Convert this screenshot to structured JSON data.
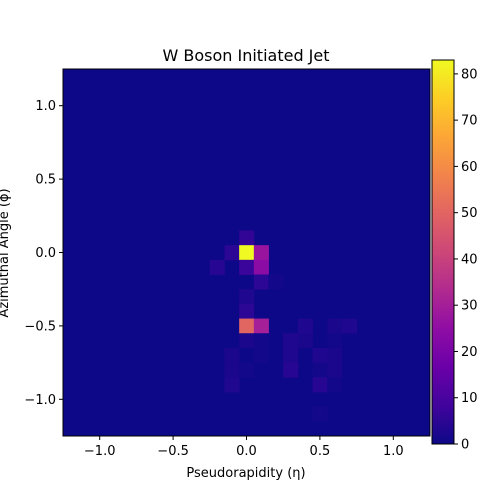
{
  "chart_data": {
    "type": "heatmap",
    "title": "W Boson Initiated Jet",
    "xlabel": "Pseudorapidity (η)",
    "ylabel": "Azimuthal Angle (ϕ)",
    "xlim": [
      -1.25,
      1.25
    ],
    "ylim": [
      -1.25,
      1.25
    ],
    "bins": 25,
    "bin_width": 0.1,
    "xticks": [
      -1.0,
      -0.5,
      0.0,
      0.5,
      1.0
    ],
    "xtick_labels": [
      "−1.0",
      "−0.5",
      "0.0",
      "0.5",
      "1.0"
    ],
    "yticks": [
      1.0,
      0.5,
      0.0,
      -0.5,
      -1.0
    ],
    "ytick_labels": [
      "1.0",
      "0.5",
      "0.0",
      "−0.5",
      "−1.0"
    ],
    "colorbar": {
      "min": 0,
      "max": 83,
      "ticks": [
        0,
        10,
        20,
        30,
        40,
        50,
        60,
        70,
        80
      ],
      "tick_labels": [
        "0",
        "10",
        "20",
        "30",
        "40",
        "50",
        "60",
        "70",
        "80"
      ],
      "colormap": "plasma"
    },
    "background_value": 0,
    "cells": [
      {
        "eta": 0.0,
        "phi": 0.1,
        "value": 6
      },
      {
        "eta": -0.1,
        "phi": 0.0,
        "value": 5
      },
      {
        "eta": 0.0,
        "phi": 0.0,
        "value": 83
      },
      {
        "eta": 0.1,
        "phi": 0.0,
        "value": 27
      },
      {
        "eta": -0.2,
        "phi": -0.1,
        "value": 4
      },
      {
        "eta": 0.0,
        "phi": -0.1,
        "value": 7
      },
      {
        "eta": 0.1,
        "phi": -0.1,
        "value": 24
      },
      {
        "eta": 0.1,
        "phi": -0.2,
        "value": 5
      },
      {
        "eta": 0.2,
        "phi": -0.2,
        "value": 1
      },
      {
        "eta": 0.0,
        "phi": -0.3,
        "value": 3
      },
      {
        "eta": 0.0,
        "phi": -0.4,
        "value": 5
      },
      {
        "eta": 0.0,
        "phi": -0.5,
        "value": 50
      },
      {
        "eta": 0.1,
        "phi": -0.5,
        "value": 30
      },
      {
        "eta": 0.4,
        "phi": -0.5,
        "value": 3
      },
      {
        "eta": 0.6,
        "phi": -0.5,
        "value": 2
      },
      {
        "eta": 0.7,
        "phi": -0.5,
        "value": 3
      },
      {
        "eta": 0.0,
        "phi": -0.6,
        "value": 2
      },
      {
        "eta": 0.1,
        "phi": -0.6,
        "value": 1
      },
      {
        "eta": 0.3,
        "phi": -0.6,
        "value": 3
      },
      {
        "eta": 0.4,
        "phi": -0.6,
        "value": 2
      },
      {
        "eta": 0.6,
        "phi": -0.6,
        "value": 1
      },
      {
        "eta": -0.1,
        "phi": -0.7,
        "value": 2
      },
      {
        "eta": 0.1,
        "phi": -0.7,
        "value": 1
      },
      {
        "eta": 0.3,
        "phi": -0.7,
        "value": 3
      },
      {
        "eta": 0.5,
        "phi": -0.7,
        "value": 3
      },
      {
        "eta": 0.6,
        "phi": -0.7,
        "value": 2
      },
      {
        "eta": -0.1,
        "phi": -0.8,
        "value": 2
      },
      {
        "eta": 0.0,
        "phi": -0.8,
        "value": 1
      },
      {
        "eta": 0.3,
        "phi": -0.8,
        "value": 4
      },
      {
        "eta": 0.5,
        "phi": -0.8,
        "value": 1
      },
      {
        "eta": 0.6,
        "phi": -0.8,
        "value": 2
      },
      {
        "eta": -0.1,
        "phi": -0.9,
        "value": 3
      },
      {
        "eta": 0.5,
        "phi": -0.9,
        "value": 4
      },
      {
        "eta": 0.6,
        "phi": -0.9,
        "value": 1
      },
      {
        "eta": 0.5,
        "phi": -1.1,
        "value": 1
      }
    ]
  }
}
